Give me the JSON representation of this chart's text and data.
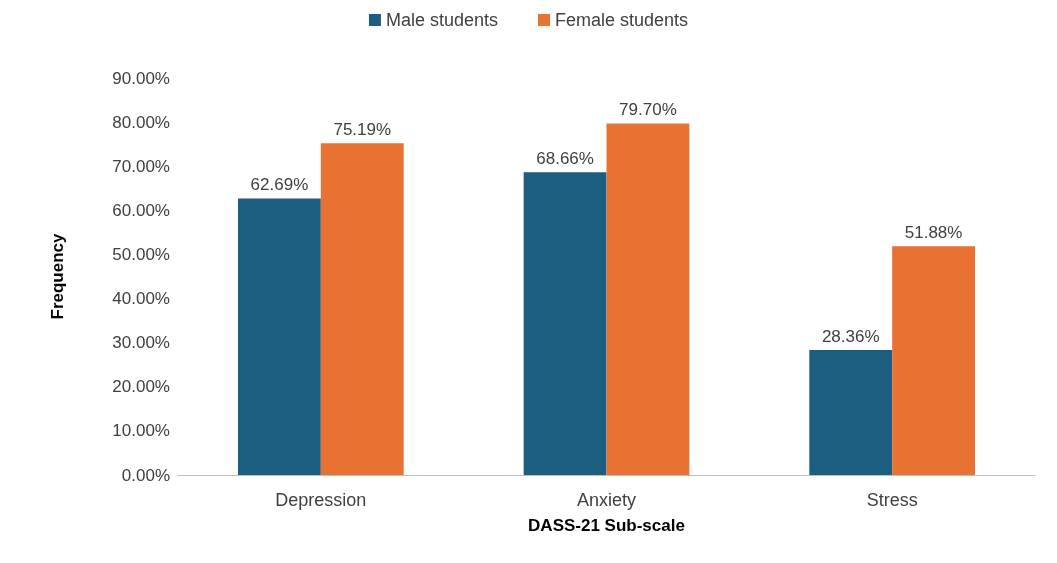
{
  "chart_data": {
    "type": "bar",
    "xlabel": "DASS-21 Sub-scale",
    "ylabel": "Frequency",
    "categories": [
      "Depression",
      "Anxiety",
      "Stress"
    ],
    "series": [
      {
        "name": "Male students",
        "color": "#1b5e80",
        "values": [
          62.69,
          68.66,
          28.36
        ],
        "value_labels": [
          "62.69%",
          "68.66%",
          "28.36%"
        ]
      },
      {
        "name": "Female students",
        "color": "#e97132",
        "values": [
          75.19,
          79.7,
          51.88
        ],
        "value_labels": [
          "75.19%",
          "79.70%",
          "51.88%"
        ]
      }
    ],
    "ylim": [
      0,
      90
    ],
    "yticks": [
      {
        "value": 0,
        "label": "0.00%"
      },
      {
        "value": 10,
        "label": "10.00%"
      },
      {
        "value": 20,
        "label": "20.00%"
      },
      {
        "value": 30,
        "label": "30.00%"
      },
      {
        "value": 40,
        "label": "40.00%"
      },
      {
        "value": 50,
        "label": "50.00%"
      },
      {
        "value": 60,
        "label": "60.00%"
      },
      {
        "value": 70,
        "label": "70.00%"
      },
      {
        "value": 80,
        "label": "80.00%"
      },
      {
        "value": 90,
        "label": "90.00%"
      }
    ],
    "grid": false,
    "legend": "top"
  }
}
